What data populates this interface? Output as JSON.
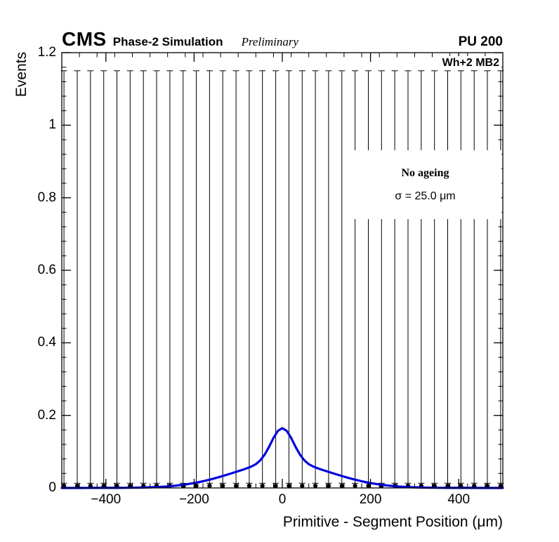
{
  "header": {
    "experiment": "CMS",
    "subtitle": "Phase-2 Simulation",
    "preliminary": "Preliminary",
    "pileup": "PU 200"
  },
  "chart_data": {
    "type": "scatter",
    "title": "",
    "xlabel": "Primitive - Segment Position (μm)",
    "ylabel": "Events",
    "xlim": [
      -500,
      500
    ],
    "ylim": [
      0,
      1.2
    ],
    "grid": false,
    "legend_position": "upper-right-inside",
    "xticks": {
      "values": [
        -400,
        -200,
        0,
        200,
        400
      ],
      "labels": [
        "−400",
        "−200",
        "0",
        "200",
        "400"
      ],
      "minor_step": 40
    },
    "yticks": {
      "values": [
        0,
        0.2,
        0.4,
        0.6,
        0.8,
        1,
        1.2
      ],
      "labels": [
        "0",
        "0.2",
        "0.4",
        "0.6",
        "0.8",
        "1",
        "1.2"
      ],
      "minor_step": 0.04
    },
    "colors": {
      "data": "#000000",
      "fit": "#0000dc"
    },
    "annotations": {
      "chamber": "Wh+2 MB2",
      "legend_title": "No ageing",
      "sigma": "σ = 25.0 μm"
    },
    "series": [
      {
        "name": "data-points",
        "type": "errorbar",
        "marker": "filled-circle",
        "color": "#000000",
        "bin_width": 30,
        "x": [
          -495,
          -465,
          -435,
          -405,
          -375,
          -345,
          -315,
          -285,
          -255,
          -225,
          -195,
          -165,
          -135,
          -105,
          -75,
          -45,
          -15,
          15,
          45,
          75,
          105,
          135,
          165,
          195,
          225,
          255,
          285,
          315,
          345,
          375,
          405,
          435,
          465,
          495
        ],
        "y": [
          0,
          0,
          0,
          0,
          0,
          0,
          0,
          0,
          0,
          0,
          0,
          0,
          0,
          0,
          0,
          0,
          0,
          0,
          0,
          0,
          0,
          0,
          0,
          0,
          0,
          0,
          0,
          0,
          0,
          0,
          0,
          0,
          0,
          0
        ],
        "err_top": 1.15,
        "err_bottom": 0.013
      },
      {
        "name": "fit-curve",
        "type": "line",
        "color": "#0000dc",
        "line_width": 3,
        "points": [
          [
            -500,
            0
          ],
          [
            -460,
            0
          ],
          [
            -420,
            0.0001
          ],
          [
            -400,
            0.0001
          ],
          [
            -380,
            0.0002
          ],
          [
            -360,
            0.0003
          ],
          [
            -340,
            0.0006
          ],
          [
            -320,
            0.001
          ],
          [
            -300,
            0.0017
          ],
          [
            -280,
            0.0027
          ],
          [
            -260,
            0.0043
          ],
          [
            -240,
            0.0065
          ],
          [
            -220,
            0.0095
          ],
          [
            -200,
            0.0134
          ],
          [
            -180,
            0.0184
          ],
          [
            -160,
            0.0243
          ],
          [
            -140,
            0.0312
          ],
          [
            -120,
            0.0386
          ],
          [
            -100,
            0.0463
          ],
          [
            -90,
            0.0502
          ],
          [
            -80,
            0.0543
          ],
          [
            -70,
            0.0591
          ],
          [
            -60,
            0.0656
          ],
          [
            -50,
            0.076
          ],
          [
            -40,
            0.0919
          ],
          [
            -30,
            0.1137
          ],
          [
            -20,
            0.1379
          ],
          [
            -10,
            0.1574
          ],
          [
            0,
            0.165
          ],
          [
            10,
            0.1574
          ],
          [
            20,
            0.1379
          ],
          [
            30,
            0.1137
          ],
          [
            40,
            0.0919
          ],
          [
            50,
            0.076
          ],
          [
            60,
            0.0656
          ],
          [
            70,
            0.0591
          ],
          [
            80,
            0.0543
          ],
          [
            90,
            0.0502
          ],
          [
            100,
            0.0463
          ],
          [
            120,
            0.0386
          ],
          [
            140,
            0.0312
          ],
          [
            160,
            0.0243
          ],
          [
            180,
            0.0184
          ],
          [
            200,
            0.0134
          ],
          [
            220,
            0.0095
          ],
          [
            240,
            0.0065
          ],
          [
            260,
            0.0043
          ],
          [
            280,
            0.0027
          ],
          [
            300,
            0.0017
          ],
          [
            320,
            0.001
          ],
          [
            340,
            0.0006
          ],
          [
            360,
            0.0003
          ],
          [
            380,
            0.0002
          ],
          [
            400,
            0.0001
          ],
          [
            420,
            0.0001
          ],
          [
            460,
            0
          ],
          [
            500,
            0
          ]
        ]
      }
    ]
  }
}
